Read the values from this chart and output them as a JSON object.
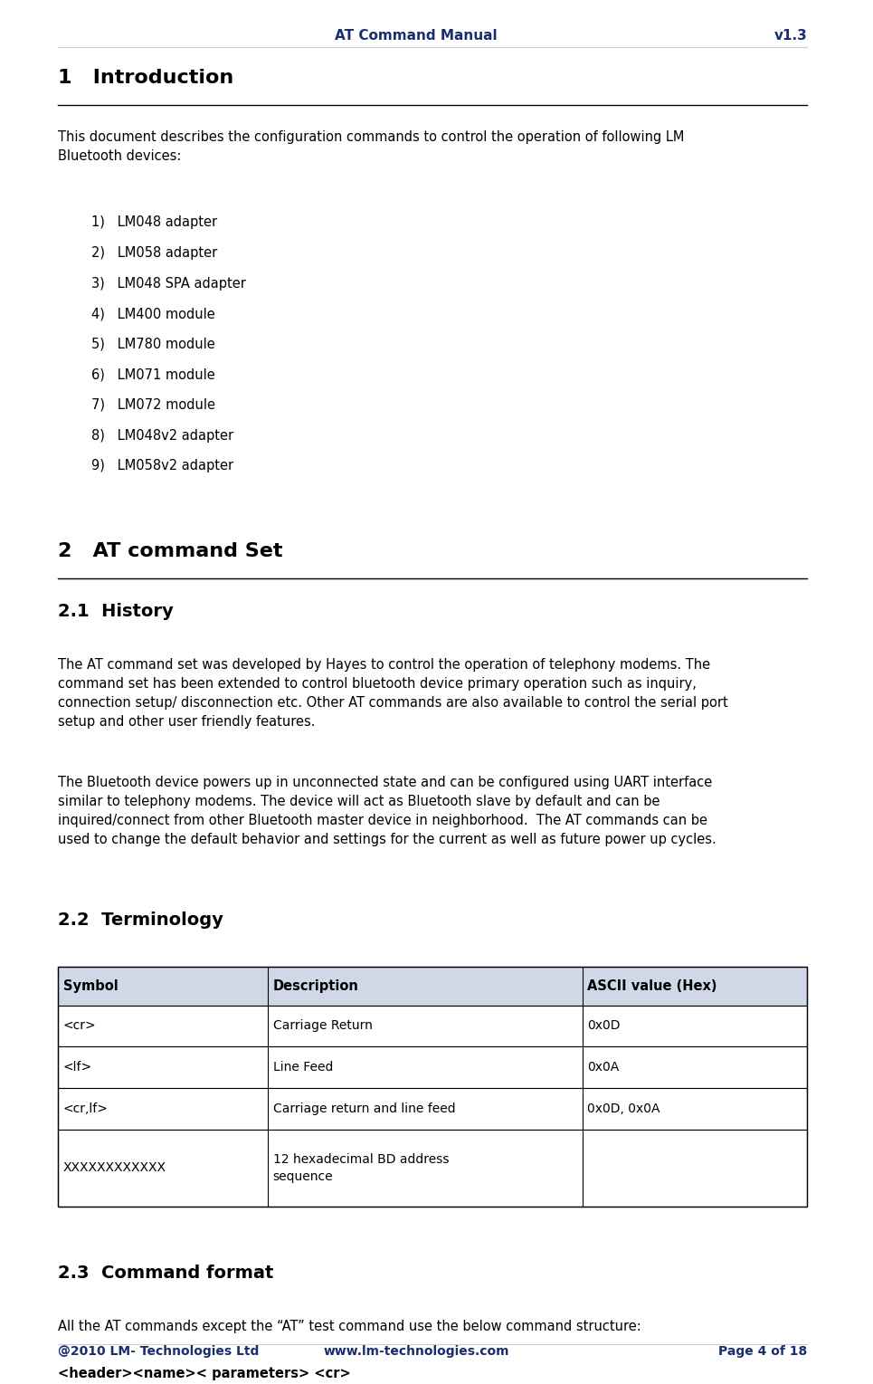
{
  "page_width": 9.65,
  "page_height": 15.29,
  "bg_color": "#ffffff",
  "header_text_left": "AT Command Manual",
  "header_text_right": "v1.3",
  "header_color": "#1a2e6e",
  "footer_left": "@2010 LM- Technologies Ltd",
  "footer_center": "www.lm-technologies.com",
  "footer_right": "Page 4 of 18",
  "footer_color": "#1a2e6e",
  "section1_title": "1   Introduction",
  "intro_para": "This document describes the configuration commands to control the operation of following LM\nBluetooth devices:",
  "list_items": [
    "1)   LM048 adapter",
    "2)   LM058 adapter",
    "3)   LM048 SPA adapter",
    "4)   LM400 module",
    "5)   LM780 module",
    "6)   LM071 module",
    "7)   LM072 module",
    "8)   LM048v2 adapter",
    "9)   LM058v2 adapter"
  ],
  "section2_title": "2   AT command Set",
  "section21_title": "2.1  History",
  "history_para1": "The AT command set was developed by Hayes to control the operation of telephony modems. The\ncommand set has been extended to control bluetooth device primary operation such as inquiry,\nconnection setup/ disconnection etc. Other AT commands are also available to control the serial port\nsetup and other user friendly features.",
  "history_para2": "The Bluetooth device powers up in unconnected state and can be configured using UART interface\nsimilar to telephony modems. The device will act as Bluetooth slave by default and can be\ninquired/connect from other Bluetooth master device in neighborhood.  The AT commands can be\nused to change the default behavior and settings for the current as well as future power up cycles.",
  "section22_title": "2.2  Terminology",
  "table_header": [
    "Symbol",
    "Description",
    "ASCII value (Hex)"
  ],
  "table_rows": [
    [
      "<cr>",
      "Carriage Return",
      "0x0D"
    ],
    [
      "<lf>",
      "Line Feed",
      "0x0A"
    ],
    [
      "<cr,lf>",
      "Carriage return and line feed",
      "0x0D, 0x0A"
    ],
    [
      "XXXXXXXXXXXX",
      "12 hexadecimal BD address\nsequence",
      ""
    ]
  ],
  "table_header_bg": "#d0d8e8",
  "table_border_color": "#000000",
  "section23_title": "2.3  Command format",
  "cmd_format_para": "All the AT commands except the “AT” test command use the below command structure:",
  "cmd_format_bold": "<header><name>< parameters> <cr>",
  "text_color": "#000000",
  "section_title_color": "#000000",
  "body_font_size": 10.5,
  "section_font_size": 16,
  "subsection_font_size": 14
}
